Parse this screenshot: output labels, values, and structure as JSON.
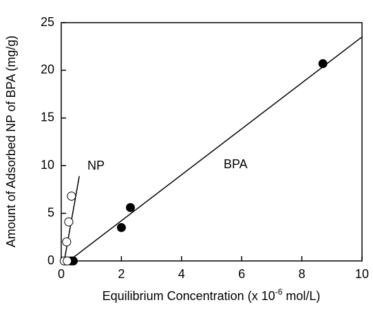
{
  "chart_data": {
    "type": "scatter",
    "x_label": [
      "Equilibrium Concentration (x 10",
      "-6",
      " mol/L)"
    ],
    "y_label": "Amount of Adsorbed NP of BPA (mg/g)",
    "xlim": [
      0,
      10
    ],
    "ylim": [
      0,
      25
    ],
    "xticks": [
      0,
      2,
      4,
      6,
      8,
      10
    ],
    "yticks": [
      0,
      5,
      10,
      15,
      20,
      25
    ],
    "series": [
      {
        "name": "BPA",
        "marker": "filled",
        "color": "#000000",
        "x": [
          0.32,
          0.4,
          2.0,
          2.3,
          8.7
        ],
        "values": [
          0,
          0,
          3.5,
          5.6,
          20.7
        ],
        "fit": {
          "x": [
            0.25,
            10
          ],
          "values": [
            0,
            23.5
          ]
        }
      },
      {
        "name": "NP",
        "marker": "open",
        "color": "#000000",
        "x": [
          0.1,
          0.2,
          0.18,
          0.25,
          0.34
        ],
        "values": [
          0,
          0,
          2.0,
          4.1,
          6.8
        ],
        "fit": {
          "x": [
            0.1,
            0.6
          ],
          "values": [
            0,
            8.9
          ]
        }
      }
    ]
  }
}
